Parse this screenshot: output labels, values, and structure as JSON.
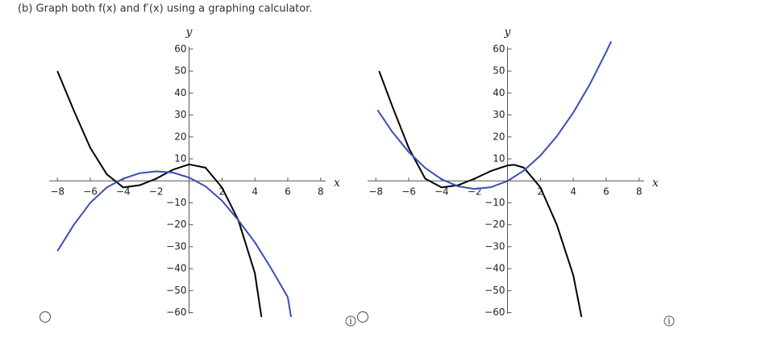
{
  "question": "(b) Graph both f(x) and f′(x) using a graphing calculator.",
  "chart_data": [
    {
      "type": "line",
      "x_label": "x",
      "y_label": "y",
      "xlim": [
        -8.5,
        8.5
      ],
      "ylim": [
        -62,
        64
      ],
      "xticks": [
        {
          "value": -8,
          "label": "−8"
        },
        {
          "value": -6,
          "label": "−6"
        },
        {
          "value": -4,
          "label": "−4"
        },
        {
          "value": -2,
          "label": "−2"
        },
        2,
        4,
        6,
        8
      ],
      "yticks": [
        60,
        50,
        40,
        30,
        20,
        10,
        {
          "value": -10,
          "label": "−10"
        },
        {
          "value": -20,
          "label": "−20"
        },
        {
          "value": -30,
          "label": "−30"
        },
        {
          "value": -40,
          "label": "−40"
        },
        {
          "value": -50,
          "label": "−50"
        },
        {
          "value": -60,
          "label": "−60"
        }
      ],
      "series": [
        {
          "color": "#000000",
          "x": [
            -8,
            -7,
            -6,
            -5,
            -4,
            -3,
            -2,
            -1,
            0,
            1,
            2,
            3,
            4,
            4.4
          ],
          "values": [
            50,
            32,
            15,
            3,
            -3,
            -2,
            1,
            5,
            7.5,
            6,
            -3,
            -18,
            -42,
            -62
          ]
        },
        {
          "color": "#3a4fb5",
          "x": [
            -8,
            -7,
            -6,
            -5,
            -4,
            -3,
            -2,
            -1,
            0,
            1,
            2,
            3,
            4,
            5,
            6,
            6.2
          ],
          "values": [
            -32,
            -20,
            -10,
            -3,
            1,
            3.5,
            4.3,
            3.8,
            1.5,
            -2.5,
            -9,
            -18,
            -28,
            -40,
            -53,
            -62
          ]
        }
      ]
    },
    {
      "type": "line",
      "x_label": "x",
      "y_label": "y",
      "xlim": [
        -8.5,
        8.5
      ],
      "ylim": [
        -62,
        64
      ],
      "xticks": [
        {
          "value": -8,
          "label": "−8"
        },
        {
          "value": -6,
          "label": "−6"
        },
        {
          "value": -4,
          "label": "−4"
        },
        {
          "value": -2,
          "label": "−2"
        },
        2,
        4,
        6,
        8
      ],
      "yticks": [
        60,
        50,
        40,
        30,
        20,
        10,
        {
          "value": -10,
          "label": "−10"
        },
        {
          "value": -20,
          "label": "−20"
        },
        {
          "value": -30,
          "label": "−30"
        },
        {
          "value": -40,
          "label": "−40"
        },
        {
          "value": -50,
          "label": "−50"
        },
        {
          "value": -60,
          "label": "−60"
        }
      ],
      "series": [
        {
          "color": "#000000",
          "x": [
            -7.8,
            -7,
            -6,
            -5,
            -4,
            -3,
            -2,
            -1,
            0,
            0.4,
            1,
            2,
            3,
            4,
            4.5
          ],
          "values": [
            50,
            34,
            15,
            1,
            -3,
            -2,
            1,
            4.5,
            7,
            7.3,
            6,
            -3,
            -20,
            -43,
            -62
          ]
        },
        {
          "color": "#3a4fb5",
          "x": [
            -7.9,
            -7,
            -6,
            -5,
            -4,
            -3,
            -2,
            -1,
            0,
            1,
            2,
            3,
            4,
            5,
            6,
            6.3
          ],
          "values": [
            32.3,
            22.3,
            13.1,
            5.9,
            0.7,
            -2.5,
            -3.7,
            -2.9,
            -0.1,
            4.7,
            11.5,
            20.3,
            31.1,
            43.9,
            58.7,
            63.5
          ]
        }
      ]
    }
  ]
}
